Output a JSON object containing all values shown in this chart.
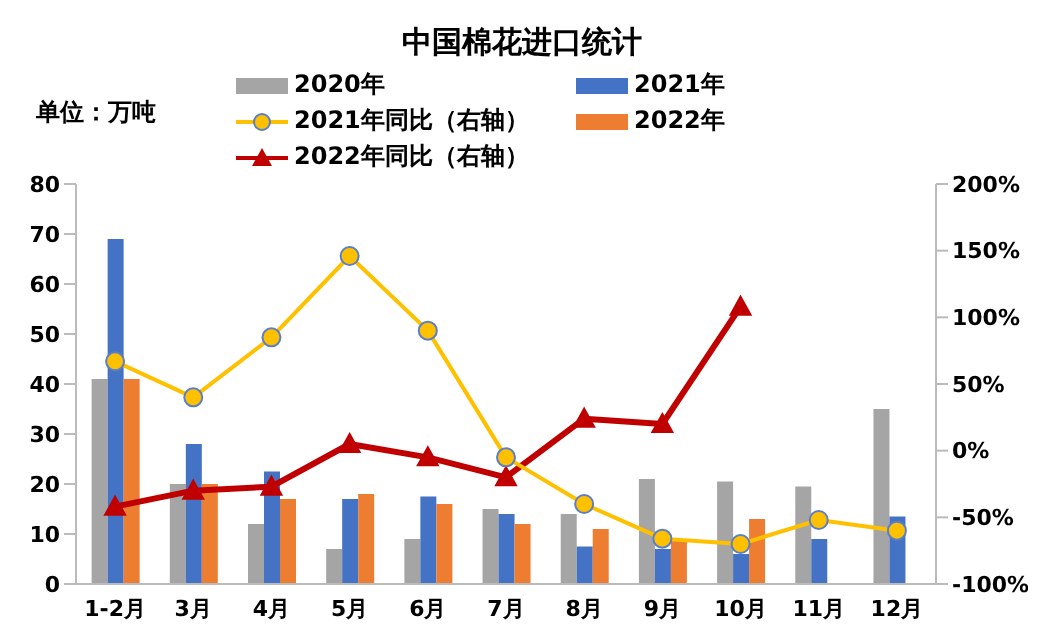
{
  "chart_data": {
    "type": "bar",
    "title": "中国棉花进口统计",
    "ylabel": "单位：万吨",
    "categories": [
      "1-2月",
      "3月",
      "4月",
      "5月",
      "6月",
      "7月",
      "8月",
      "9月",
      "10月",
      "11月",
      "12月"
    ],
    "series": [
      {
        "name": "2020年",
        "color": "#a5a5a5",
        "values": [
          41,
          20,
          12,
          7,
          9,
          15,
          14,
          21,
          20.5,
          19.5,
          35
        ]
      },
      {
        "name": "2021年",
        "color": "#4472c4",
        "values": [
          69,
          28,
          22.5,
          17,
          17.5,
          14,
          7.5,
          7,
          6,
          9,
          13.5
        ]
      },
      {
        "name": "2022年",
        "color": "#ed7d31",
        "values": [
          41,
          20,
          17,
          18,
          16,
          12,
          11,
          9,
          13,
          null,
          null
        ]
      },
      {
        "name": "2022年同比（右轴）",
        "type": "line",
        "axis": "y2",
        "marker": "triangle",
        "color": "#c00000",
        "values": [
          -42,
          -30,
          -27,
          5,
          -5,
          -20,
          24,
          20,
          108,
          null,
          null
        ]
      },
      {
        "name": "2021年同比（右轴）",
        "type": "line",
        "axis": "y2",
        "marker": "circle",
        "color": "#ffc000",
        "values": [
          67,
          40,
          85,
          146,
          90,
          -5,
          -40,
          -66,
          -70,
          -52,
          -60
        ]
      }
    ],
    "ylim": [
      0,
      80
    ],
    "yticks": [
      0,
      10,
      20,
      30,
      40,
      50,
      60,
      70,
      80
    ],
    "y2lim": [
      -100,
      200
    ],
    "y2ticks": [
      {
        "value": -100,
        "label": "-100%"
      },
      {
        "value": -50,
        "label": "-50%"
      },
      {
        "value": 0,
        "label": "0%"
      },
      {
        "value": 50,
        "label": "50%"
      },
      {
        "value": 100,
        "label": "100%"
      },
      {
        "value": 150,
        "label": "150%"
      },
      {
        "value": 200,
        "label": "200%"
      }
    ],
    "legend": "top",
    "grid": false
  }
}
